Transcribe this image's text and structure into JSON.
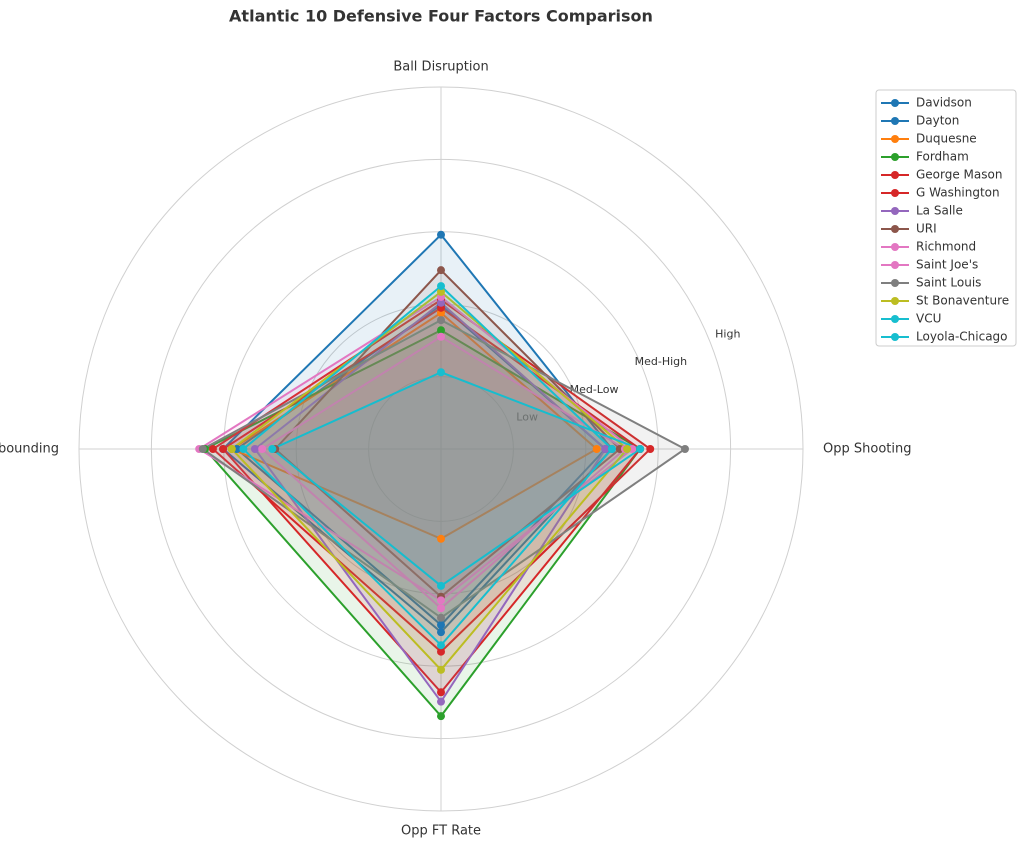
{
  "chart_data": {
    "type": "radar",
    "title": "Atlantic 10 Defensive Four Factors Comparison",
    "categories": [
      "Ball Disruption",
      "Def Rebounding",
      "Opp FT Rate",
      "Opp Shooting"
    ],
    "ylim": [
      0,
      5
    ],
    "yticks": [
      {
        "value": 1,
        "label": "Low"
      },
      {
        "value": 2,
        "label": "Med-Low"
      },
      {
        "value": 3,
        "label": "Med-High"
      },
      {
        "value": 4,
        "label": "High"
      }
    ],
    "grid": true,
    "legend": "upper right",
    "series": [
      {
        "name": "Davidson",
        "color": "#1f77b4",
        "values": [
          2.96,
          3.01,
          2.53,
          2.36
        ]
      },
      {
        "name": "Dayton",
        "color": "#1f77b4",
        "values": [
          1.99,
          2.82,
          2.43,
          2.27
        ]
      },
      {
        "name": "Duquesne",
        "color": "#ff7f0e",
        "values": [
          1.88,
          2.89,
          1.24,
          2.15
        ]
      },
      {
        "name": "Fordham",
        "color": "#2ca02c",
        "values": [
          1.64,
          3.26,
          3.69,
          2.75
        ]
      },
      {
        "name": "George Mason",
        "color": "#d62728",
        "values": [
          2.06,
          3.15,
          2.8,
          2.89
        ]
      },
      {
        "name": "G Washington",
        "color": "#d62728",
        "values": [
          1.95,
          3.01,
          3.36,
          2.75
        ]
      },
      {
        "name": "La Salle",
        "color": "#9467bd",
        "values": [
          2.02,
          2.57,
          3.49,
          2.27
        ]
      },
      {
        "name": "URI",
        "color": "#8c564b",
        "values": [
          2.47,
          2.29,
          2.04,
          2.47
        ]
      },
      {
        "name": "Richmond",
        "color": "#e377c2",
        "values": [
          1.55,
          2.47,
          2.2,
          2.54
        ]
      },
      {
        "name": "Saint Joe's",
        "color": "#e377c2",
        "values": [
          2.1,
          3.34,
          2.09,
          2.64
        ]
      },
      {
        "name": "Saint Louis",
        "color": "#7f7f7f",
        "values": [
          1.78,
          3.29,
          2.33,
          3.37
        ]
      },
      {
        "name": "St Bonaventure",
        "color": "#bcbd22",
        "values": [
          2.17,
          2.89,
          3.05,
          2.57
        ]
      },
      {
        "name": "VCU",
        "color": "#17becf",
        "values": [
          1.06,
          2.33,
          1.89,
          2.75
        ]
      },
      {
        "name": "Loyola-Chicago",
        "color": "#17becf",
        "values": [
          2.25,
          2.73,
          2.71,
          2.36
        ]
      }
    ]
  }
}
